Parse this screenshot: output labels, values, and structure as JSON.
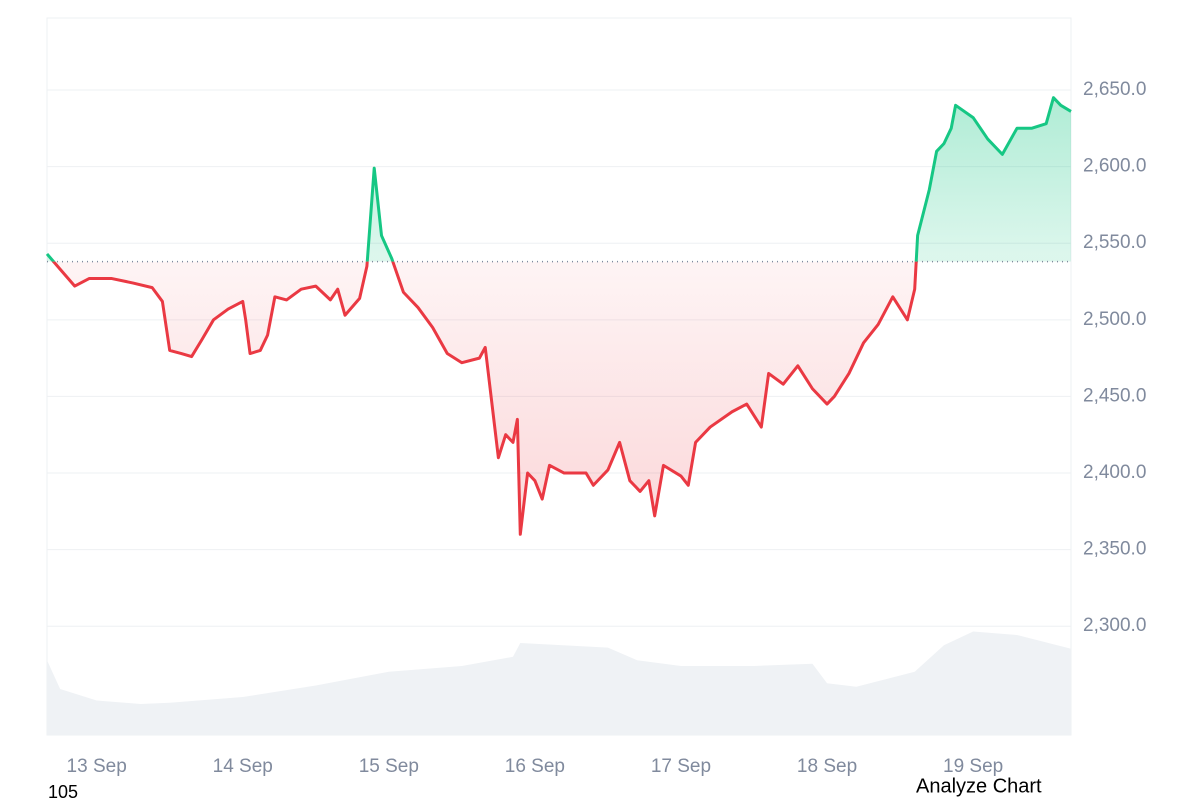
{
  "chart_data": {
    "type": "line",
    "x": [
      12.66,
      12.75,
      12.85,
      12.95,
      13.1,
      13.25,
      13.38,
      13.45,
      13.5,
      13.58,
      13.65,
      13.72,
      13.8,
      13.9,
      14.0,
      14.02,
      14.05,
      14.12,
      14.17,
      14.22,
      14.3,
      14.4,
      14.5,
      14.6,
      14.65,
      14.7,
      14.8,
      14.85,
      14.9,
      14.95,
      15.02,
      15.1,
      15.2,
      15.3,
      15.4,
      15.5,
      15.62,
      15.66,
      15.7,
      15.75,
      15.8,
      15.85,
      15.88,
      15.9,
      15.95,
      16.0,
      16.05,
      16.1,
      16.2,
      16.35,
      16.4,
      16.5,
      16.58,
      16.65,
      16.72,
      16.78,
      16.82,
      16.88,
      17.0,
      17.05,
      17.1,
      17.2,
      17.35,
      17.45,
      17.55,
      17.6,
      17.7,
      17.8,
      17.9,
      18.0,
      18.05,
      18.15,
      18.25,
      18.35,
      18.45,
      18.55,
      18.6,
      18.62,
      18.7,
      18.75,
      18.8,
      18.85,
      18.88,
      19.0,
      19.1,
      19.2,
      19.3,
      19.4,
      19.5,
      19.55,
      19.6,
      19.67
    ],
    "series": [
      {
        "values": [
          2543,
          2533,
          2522,
          2527,
          2527,
          2524,
          2521,
          2512,
          2480,
          2478,
          2476,
          2487,
          2500,
          2507,
          2512,
          2500,
          2478,
          2480,
          2490,
          2515,
          2513,
          2520,
          2522,
          2513,
          2520,
          2503,
          2514,
          2535,
          2599,
          2555,
          2540,
          2518,
          2508,
          2495,
          2478,
          2472,
          2475,
          2482,
          2450,
          2410,
          2425,
          2420,
          2435,
          2360,
          2400,
          2395,
          2383,
          2405,
          2400,
          2400,
          2392,
          2402,
          2420,
          2395,
          2388,
          2395,
          2372,
          2405,
          2398,
          2392,
          2420,
          2430,
          2440,
          2445,
          2430,
          2465,
          2458,
          2470,
          2455,
          2445,
          2450,
          2465,
          2485,
          2497,
          2515,
          2500,
          2520,
          2555,
          2585,
          2610,
          2615,
          2625,
          2640,
          2632,
          2618,
          2608,
          2625,
          2625,
          2628,
          2645,
          2640,
          2636
        ]
      }
    ],
    "baseline": 2538,
    "up_color": "#16c784",
    "down_color": "#ea3943",
    "volume": {
      "color": "#eff2f5",
      "x": [
        12.66,
        12.75,
        13.0,
        13.3,
        13.5,
        14.0,
        14.5,
        15.0,
        15.5,
        15.85,
        15.9,
        16.5,
        16.7,
        17.0,
        17.5,
        17.9,
        18.0,
        18.2,
        18.6,
        18.8,
        19.0,
        19.3,
        19.67
      ],
      "values": [
        65,
        40,
        30,
        27,
        28,
        33,
        43,
        55,
        60,
        68,
        80,
        76,
        65,
        60,
        60,
        62,
        45,
        42,
        55,
        78,
        90,
        87,
        75
      ]
    },
    "y2lim": [
      0,
      100
    ],
    "xlim": [
      12.66,
      19.67
    ],
    "xticks": [
      {
        "value": 13,
        "label": "13 Sep"
      },
      {
        "value": 14,
        "label": "14 Sep"
      },
      {
        "value": 15,
        "label": "15 Sep"
      },
      {
        "value": 16,
        "label": "16 Sep"
      },
      {
        "value": 17,
        "label": "17 Sep"
      },
      {
        "value": 18,
        "label": "18 Sep"
      },
      {
        "value": 19,
        "label": "19 Sep"
      }
    ],
    "ylim": [
      2229,
      2697
    ],
    "yticks": [
      {
        "value": 2300,
        "label": "2,300.0"
      },
      {
        "value": 2350,
        "label": "2,350.0"
      },
      {
        "value": 2400,
        "label": "2,400.0"
      },
      {
        "value": 2450,
        "label": "2,450.0"
      },
      {
        "value": 2500,
        "label": "2,500.0"
      },
      {
        "value": 2550,
        "label": "2,550.0"
      },
      {
        "value": 2600,
        "label": "2,600.0"
      },
      {
        "value": 2650,
        "label": "2,650.0"
      }
    ],
    "grid": true
  },
  "footer": {
    "left": "105",
    "button": "Analyze Chart"
  }
}
